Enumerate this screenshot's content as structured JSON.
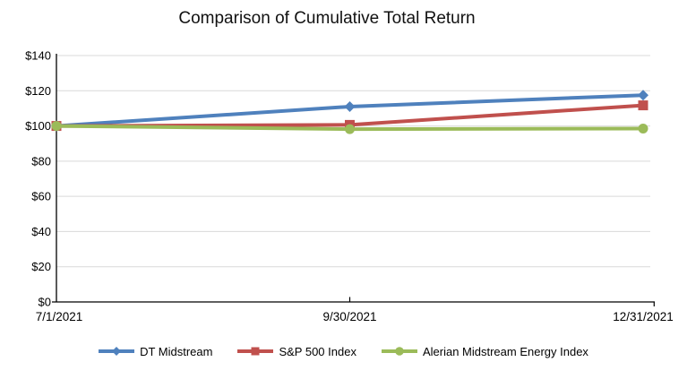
{
  "title": "Comparison of Cumulative Total Return",
  "chart_data": {
    "type": "line",
    "title": "Comparison of Cumulative Total Return",
    "categories": [
      "7/1/2021",
      "9/30/2021",
      "12/31/2021"
    ],
    "series": [
      {
        "name": "DT Midstream",
        "marker": "diamond",
        "color": "#4F81BD",
        "values": [
          100,
          111,
          117.5
        ]
      },
      {
        "name": "S&P 500 Index",
        "marker": "square",
        "color": "#C0504D",
        "values": [
          100,
          100.6,
          111.7
        ]
      },
      {
        "name": "Alerian Midstream Energy Index",
        "marker": "circle",
        "color": "#9BBB59",
        "values": [
          100,
          98.2,
          98.5
        ]
      }
    ],
    "xlabel": "",
    "ylabel": "",
    "ylim": [
      0,
      140
    ],
    "ytick_step": 20,
    "ytick_labels": [
      "$0",
      "$20",
      "$40",
      "$60",
      "$80",
      "$100",
      "$120",
      "$140"
    ],
    "grid": true,
    "gridline_color": "#D9D9D9",
    "axis_color": "#000000",
    "legend_position": "bottom",
    "line_width": 4
  }
}
